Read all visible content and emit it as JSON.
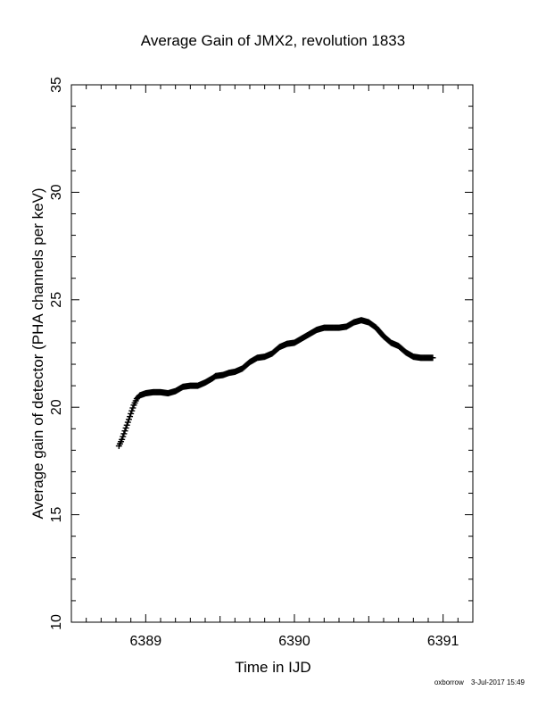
{
  "chart_data": {
    "type": "scatter",
    "title": "Average Gain of JMX2, revolution 1833",
    "xlabel": "Time in IJD",
    "ylabel": "Average gain of detector (PHA channels per keV)",
    "xlim": [
      6388.5,
      6391.2
    ],
    "ylim": [
      10,
      35
    ],
    "xticks": [
      "6389",
      "6390",
      "6391"
    ],
    "yticks": [
      "10",
      "15",
      "20",
      "25",
      "30",
      "35"
    ],
    "grid": false,
    "legend": "none",
    "marker": "plus",
    "color": "#000000",
    "series": [
      {
        "points": [
          [
            6388.82,
            18.2
          ],
          [
            6388.84,
            18.5
          ],
          [
            6388.86,
            18.9
          ],
          [
            6388.88,
            19.3
          ],
          [
            6388.9,
            19.7
          ],
          [
            6388.92,
            20.1
          ],
          [
            6388.94,
            20.4
          ],
          [
            6388.96,
            20.55
          ],
          [
            6389.0,
            20.65
          ],
          [
            6389.05,
            20.7
          ],
          [
            6389.1,
            20.7
          ],
          [
            6389.15,
            20.65
          ],
          [
            6389.2,
            20.75
          ],
          [
            6389.25,
            20.95
          ],
          [
            6389.3,
            21.0
          ],
          [
            6389.35,
            21.0
          ],
          [
            6389.4,
            21.15
          ],
          [
            6389.45,
            21.35
          ],
          [
            6389.47,
            21.45
          ],
          [
            6389.52,
            21.5
          ],
          [
            6389.56,
            21.6
          ],
          [
            6389.6,
            21.65
          ],
          [
            6389.65,
            21.8
          ],
          [
            6389.7,
            22.1
          ],
          [
            6389.75,
            22.3
          ],
          [
            6389.8,
            22.35
          ],
          [
            6389.85,
            22.5
          ],
          [
            6389.9,
            22.8
          ],
          [
            6389.95,
            22.95
          ],
          [
            6390.0,
            23.0
          ],
          [
            6390.05,
            23.2
          ],
          [
            6390.1,
            23.4
          ],
          [
            6390.15,
            23.6
          ],
          [
            6390.2,
            23.7
          ],
          [
            6390.25,
            23.7
          ],
          [
            6390.3,
            23.7
          ],
          [
            6390.35,
            23.75
          ],
          [
            6390.4,
            23.95
          ],
          [
            6390.45,
            24.05
          ],
          [
            6390.5,
            23.95
          ],
          [
            6390.55,
            23.7
          ],
          [
            6390.6,
            23.3
          ],
          [
            6390.65,
            23.0
          ],
          [
            6390.7,
            22.85
          ],
          [
            6390.75,
            22.55
          ],
          [
            6390.8,
            22.35
          ],
          [
            6390.85,
            22.3
          ],
          [
            6390.9,
            22.3
          ],
          [
            6390.93,
            22.3
          ]
        ]
      }
    ]
  },
  "footer": {
    "user": "oxborrow",
    "timestamp": "3-Jul-2017 15:49"
  }
}
